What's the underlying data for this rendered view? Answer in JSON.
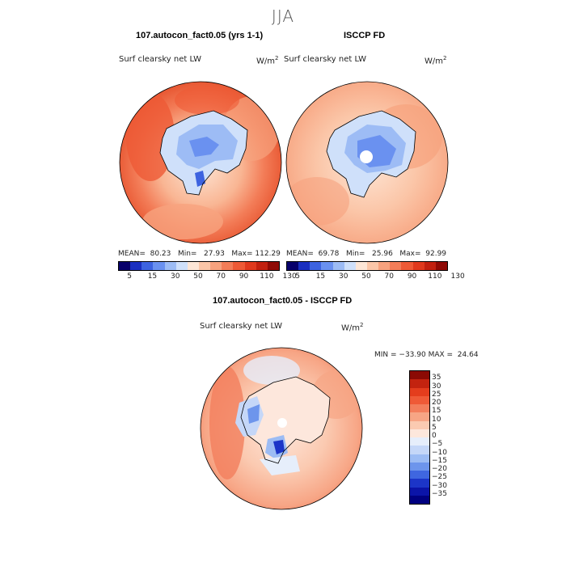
{
  "season": "JJA",
  "panel1": {
    "title": "107.autocon_fact0.05 (yrs 1-1)",
    "variable": "Surf clearsky net LW",
    "units": "W/m",
    "units_exp": "2",
    "stats": "MEAN=  80.23   Min=   27.93   Max= 112.29"
  },
  "panel2": {
    "title": "ISCCP FD",
    "variable": "Surf clearsky net LW",
    "units": "W/m",
    "units_exp": "2",
    "stats": "MEAN=  69.78   Min=   25.96   Max=  92.99"
  },
  "panel3": {
    "title": "107.autocon_fact0.05 - ISCCP FD",
    "variable": "Surf clearsky net LW",
    "units": "W/m",
    "units_exp": "2",
    "stats": "MIN = −33.90 MAX =  24.64"
  },
  "colorbar_top": {
    "colors": [
      "#08006b",
      "#1a2fc0",
      "#3d63e0",
      "#6a91f0",
      "#9dbcf5",
      "#cfe0fa",
      "#fde6d6",
      "#fbc6a8",
      "#f7a27e",
      "#f37d58",
      "#ee5a36",
      "#e0391d",
      "#c2200f",
      "#8f0a05"
    ],
    "labels": [
      "5",
      "15",
      "30",
      "50",
      "70",
      "90",
      "110",
      "130"
    ]
  },
  "colorbar_diff": {
    "colors": [
      "#8b0a04",
      "#c3230f",
      "#e43d1d",
      "#ef5a37",
      "#f37e5c",
      "#f7a585",
      "#fbcab1",
      "#fde7dc",
      "#e6eefb",
      "#c5d7f8",
      "#9cbcf4",
      "#6d95ec",
      "#3f66e0",
      "#1c35c8",
      "#0b14a8",
      "#000080"
    ],
    "labels": [
      "35",
      "30",
      "25",
      "20",
      "15",
      "10",
      "5",
      "0",
      "−5",
      "−10",
      "−15",
      "−20",
      "−25",
      "−30",
      "−35"
    ]
  }
}
